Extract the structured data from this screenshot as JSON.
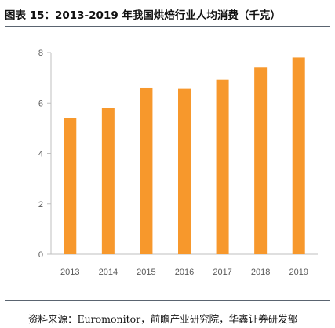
{
  "header": {
    "title": "图表 15：2013-2019 年我国烘焙行业人均消费（千克）"
  },
  "footer": {
    "source": "资料来源：Euromonitor，前瞻产业研究院，华鑫证券研发部"
  },
  "chart_data": {
    "type": "bar",
    "title": "",
    "xlabel": "",
    "ylabel": "",
    "categories": [
      "2013",
      "2014",
      "2015",
      "2016",
      "2017",
      "2018",
      "2019"
    ],
    "values": [
      5.4,
      5.82,
      6.6,
      6.58,
      6.92,
      7.4,
      7.8
    ],
    "ylim": [
      0,
      8
    ],
    "yticks": [
      "0",
      "2",
      "4",
      "6",
      "8"
    ],
    "grid": false,
    "legend": "none",
    "bar_color": "#F7982C",
    "axis_color": "#BFBFBF"
  }
}
